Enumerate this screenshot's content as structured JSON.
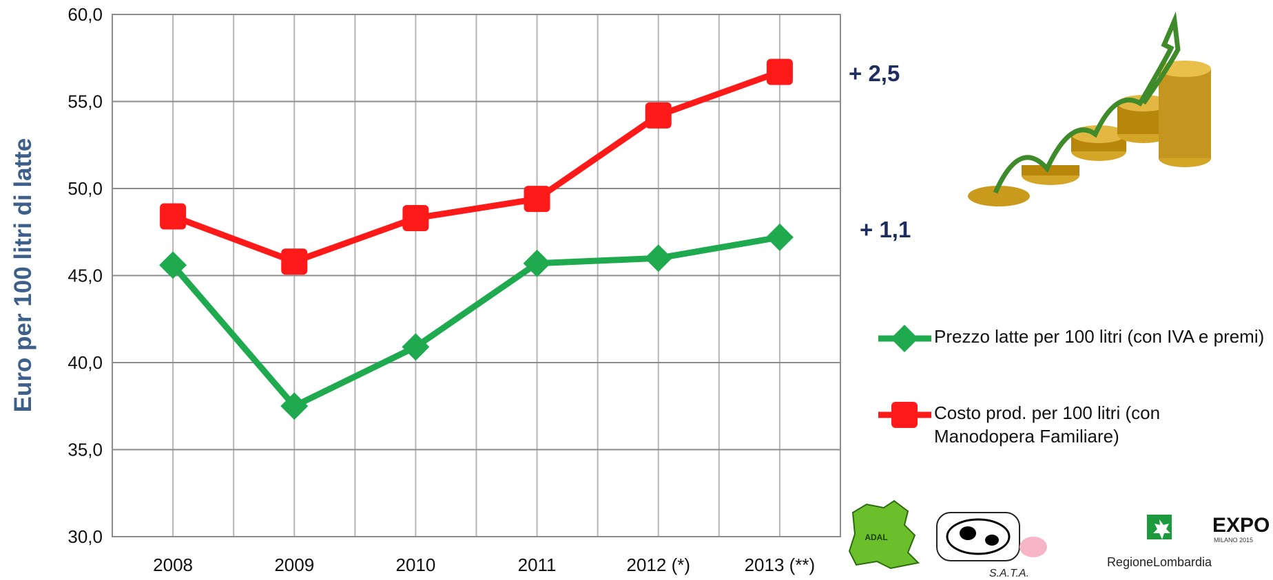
{
  "chart_data": {
    "type": "line",
    "ylabel": "Euro per 100 litri di latte",
    "categories": [
      "2008",
      "2009",
      "2010",
      "2011",
      "2012 (*)",
      "2013 (**)"
    ],
    "series": [
      {
        "name": "Prezzo latte per 100 litri (con IVA e premi)",
        "color": "#1faa4f",
        "values": [
          45.6,
          37.5,
          40.9,
          45.7,
          46.0,
          47.2
        ]
      },
      {
        "name": "Costo prod. per 100 litri (con Manodopera Familiare)",
        "color": "#ff1a1a",
        "values": [
          48.4,
          45.8,
          48.3,
          49.4,
          54.2,
          56.7
        ]
      }
    ],
    "ylim": [
      30,
      60
    ],
    "yticks": [
      {
        "value": 30,
        "label": "30,0"
      },
      {
        "value": 35,
        "label": "35,0"
      },
      {
        "value": 40,
        "label": "40,0"
      },
      {
        "value": 45,
        "label": "45,0"
      },
      {
        "value": 50,
        "label": "50,0"
      },
      {
        "value": 55,
        "label": "55,0"
      },
      {
        "value": 60,
        "label": "60,0"
      }
    ],
    "grid": true,
    "annotations": [
      "+ 2,5",
      "+ 1,1"
    ],
    "logos": [
      "ADAL",
      "S.A.T.A.",
      "RegioneLombardia",
      "EXPO",
      "MILANO 2015"
    ]
  }
}
